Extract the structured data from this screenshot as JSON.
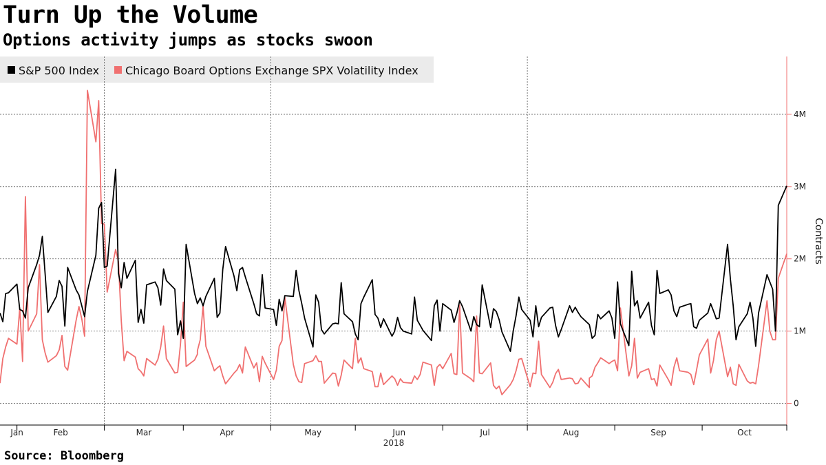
{
  "title": "Turn Up the Volume",
  "subtitle": "Options activity jumps as stocks swoon",
  "source": "Source: Bloomberg",
  "chart_data": {
    "type": "line",
    "x_start": "2017-12-26",
    "x_end": "2018-10-01",
    "month_labels": [
      "Jan",
      "Feb",
      "Mar",
      "Apr",
      "May",
      "Jun",
      "Jul",
      "Aug",
      "Sep",
      "Oct"
    ],
    "year_label": "2018",
    "ylabel": "Contracts",
    "y_axis": "right",
    "ylim": [
      -300000,
      4800000
    ],
    "y_ticks": [
      0,
      1000000,
      2000000,
      3000000,
      4000000
    ],
    "y_tick_labels": [
      "0",
      "1M",
      "2M",
      "3M",
      "4M"
    ],
    "grid": true,
    "legend_position": "top-left",
    "series": [
      {
        "name": "S&P 500 Index",
        "color": "#000000",
        "values": [
          1250000,
          1130000,
          1520000,
          1530000,
          1650000,
          1300000,
          1280000,
          1180000,
          1600000,
          1920000,
          2050000,
          2310000,
          1800000,
          1260000,
          1480000,
          1700000,
          1620000,
          1070000,
          1880000,
          1570000,
          1500000,
          1350000,
          1200000,
          1550000,
          2050000,
          2700000,
          2780000,
          1880000,
          1900000,
          3240000,
          1800000,
          1600000,
          1950000,
          1730000,
          1980000,
          1120000,
          1300000,
          1110000,
          1640000,
          1680000,
          1600000,
          1360000,
          1860000,
          1700000,
          1580000,
          950000,
          1140000,
          900000,
          2200000,
          1520000,
          1380000,
          1460000,
          1350000,
          1480000,
          1730000,
          1190000,
          1250000,
          1850000,
          2170000,
          1760000,
          1560000,
          1850000,
          1880000,
          1750000,
          1380000,
          1240000,
          1210000,
          1780000,
          1320000,
          1300000,
          1080000,
          1440000,
          1280000,
          1490000,
          1480000,
          1840000,
          1560000,
          1380000,
          1180000,
          780000,
          1500000,
          1400000,
          1020000,
          960000,
          1100000,
          1110000,
          1100000,
          1670000,
          1240000,
          1130000,
          960000,
          880000,
          1380000,
          1470000,
          1710000,
          1230000,
          1180000,
          1050000,
          1170000,
          930000,
          1000000,
          1010000,
          1190000,
          1050000,
          1000000,
          960000,
          1470000,
          1150000,
          1080000,
          1010000,
          870000,
          1350000,
          1430000,
          1000000,
          1380000,
          1290000,
          1120000,
          1250000,
          1420000,
          1340000,
          1000000,
          1200000,
          1090000,
          1060000,
          1640000,
          1050000,
          1310000,
          1270000,
          1160000,
          990000,
          720000,
          1000000,
          1210000,
          1470000,
          1300000,
          1150000,
          920000,
          1350000,
          1060000,
          1190000,
          1320000,
          1330000,
          1080000,
          920000,
          1020000,
          1350000,
          1260000,
          1330000,
          1260000,
          1200000,
          1090000,
          900000,
          940000,
          1230000,
          1170000,
          1280000,
          1180000,
          900000,
          1680000,
          1100000,
          800000,
          1830000,
          1350000,
          1420000,
          1180000,
          1400000,
          1080000,
          950000,
          1840000,
          1520000,
          1570000,
          1500000,
          1280000,
          1200000,
          1330000,
          1370000,
          1380000,
          1060000,
          1040000,
          1150000,
          1250000,
          1380000,
          1280000,
          1170000,
          1180000,
          2200000,
          1720000,
          1350000,
          880000,
          1060000,
          1240000,
          1400000,
          1180000,
          790000,
          1250000,
          1780000,
          1680000,
          1580000,
          1000000,
          2740000,
          3010000
        ]
      },
      {
        "name": "Chicago Board Options Exchange SPX Volatility Index",
        "color": "#f07070",
        "values": [
          280000,
          620000,
          780000,
          900000,
          820000,
          1320000,
          580000,
          2860000,
          1000000,
          1240000,
          1920000,
          880000,
          700000,
          570000,
          660000,
          740000,
          940000,
          510000,
          460000,
          1150000,
          1340000,
          1170000,
          930000,
          4330000,
          3620000,
          4190000,
          2490000,
          2480000,
          1540000,
          2130000,
          1960000,
          1140000,
          590000,
          720000,
          640000,
          480000,
          440000,
          380000,
          620000,
          530000,
          610000,
          780000,
          1070000,
          620000,
          420000,
          430000,
          820000,
          1400000,
          510000,
          600000,
          680000,
          730000,
          880000,
          1350000,
          790000,
          450000,
          490000,
          520000,
          380000,
          270000,
          420000,
          460000,
          540000,
          420000,
          780000,
          490000,
          560000,
          300000,
          650000,
          560000,
          330000,
          460000,
          790000,
          870000,
          1470000,
          540000,
          380000,
          300000,
          290000,
          550000,
          590000,
          660000,
          580000,
          580000,
          280000,
          420000,
          410000,
          240000,
          390000,
          600000,
          480000,
          900000,
          560000,
          630000,
          480000,
          440000,
          230000,
          230000,
          420000,
          260000,
          380000,
          340000,
          250000,
          340000,
          290000,
          280000,
          380000,
          330000,
          400000,
          570000,
          530000,
          250000,
          500000,
          540000,
          480000,
          690000,
          410000,
          400000,
          1360000,
          420000,
          340000,
          300000,
          1210000,
          420000,
          410000,
          560000,
          250000,
          200000,
          240000,
          120000,
          260000,
          330000,
          450000,
          610000,
          620000,
          230000,
          420000,
          410000,
          860000,
          400000,
          220000,
          290000,
          410000,
          470000,
          330000,
          350000,
          340000,
          270000,
          280000,
          350000,
          220000,
          350000,
          380000,
          500000,
          560000,
          630000,
          550000,
          580000,
          600000,
          450000,
          1320000,
          380000,
          520000,
          900000,
          350000,
          430000,
          480000,
          330000,
          340000,
          240000,
          530000,
          330000,
          250000,
          500000,
          630000,
          450000,
          430000,
          400000,
          260000,
          460000,
          670000,
          890000,
          420000,
          590000,
          880000,
          1000000,
          370000,
          500000,
          270000,
          250000,
          540000,
          310000,
          280000,
          290000,
          270000,
          520000,
          1420000,
          1000000,
          880000,
          880000,
          1730000,
          2070000
        ]
      }
    ]
  }
}
